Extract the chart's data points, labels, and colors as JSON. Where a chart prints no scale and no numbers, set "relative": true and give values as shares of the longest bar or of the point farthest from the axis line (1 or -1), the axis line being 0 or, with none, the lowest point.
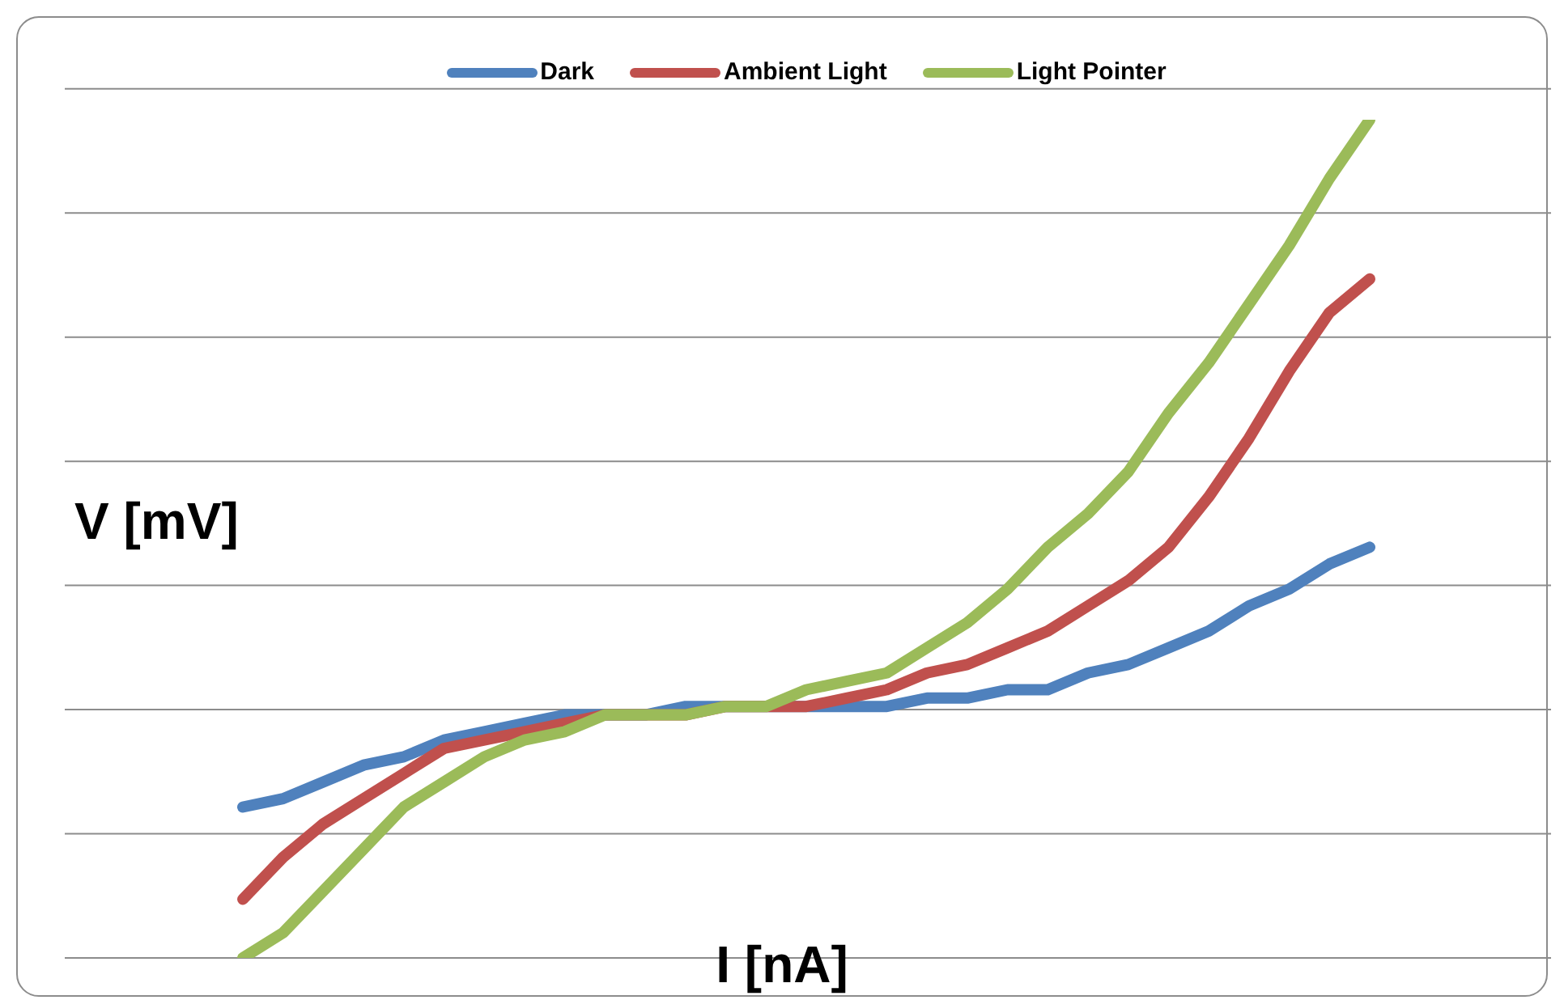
{
  "chart_data": {
    "type": "line",
    "relative": true,
    "xlabel": "I [nA]",
    "ylabel": "V [mV]",
    "grid": "y",
    "legend": "top",
    "marker": "none",
    "line_style": "solid",
    "categories": [
      null,
      null,
      null,
      null,
      null,
      null,
      null,
      null,
      null,
      null,
      null,
      null,
      null,
      null,
      null,
      null,
      null,
      null,
      null,
      null,
      null,
      null,
      null,
      null,
      null,
      null,
      null,
      null,
      null
    ],
    "series": [
      {
        "name": "Dark",
        "color": "#4f81bd",
        "values": [
          0.18,
          0.19,
          0.21,
          0.23,
          0.24,
          0.26,
          0.27,
          0.28,
          0.29,
          0.29,
          0.29,
          0.3,
          0.3,
          0.3,
          0.3,
          0.3,
          0.3,
          0.31,
          0.31,
          0.32,
          0.32,
          0.34,
          0.35,
          0.37,
          0.39,
          0.42,
          0.44,
          0.47,
          0.49
        ]
      },
      {
        "name": "Ambient Light",
        "color": "#c0504d",
        "values": [
          0.07,
          0.12,
          0.16,
          0.19,
          0.22,
          0.25,
          0.26,
          0.27,
          0.28,
          0.29,
          0.29,
          0.29,
          0.3,
          0.3,
          0.3,
          0.31,
          0.32,
          0.34,
          0.35,
          0.37,
          0.39,
          0.42,
          0.45,
          0.49,
          0.55,
          0.62,
          0.7,
          0.77,
          0.81
        ]
      },
      {
        "name": "Light Pointer",
        "color": "#9bbb59",
        "values": [
          0,
          0.03,
          0.08,
          0.13,
          0.18,
          0.21,
          0.24,
          0.26,
          0.27,
          0.29,
          0.29,
          0.29,
          0.3,
          0.3,
          0.32,
          0.33,
          0.34,
          0.37,
          0.4,
          0.44,
          0.49,
          0.53,
          0.58,
          0.65,
          0.71,
          0.78,
          0.85,
          0.93,
          1
        ]
      }
    ]
  }
}
